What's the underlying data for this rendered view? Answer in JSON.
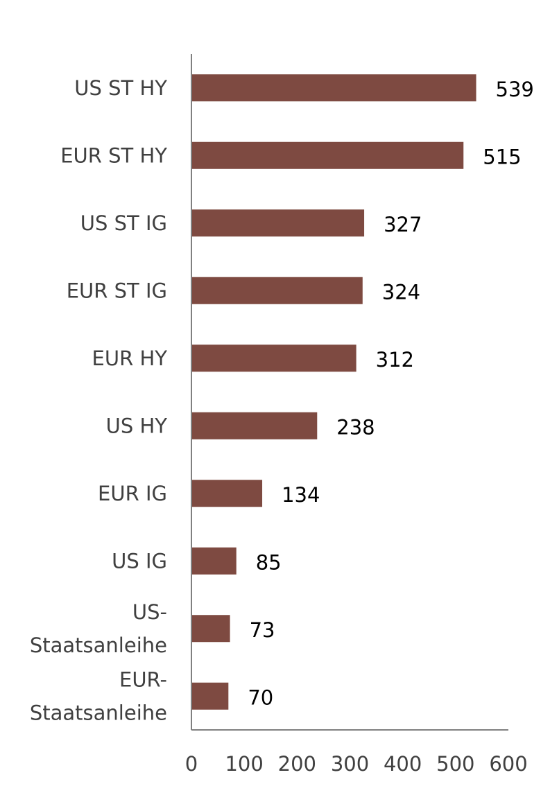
{
  "chart_data": {
    "type": "bar",
    "orientation": "horizontal",
    "title": "",
    "xlabel": "",
    "ylabel": "",
    "xlim": [
      0,
      600
    ],
    "xticks": [
      0,
      100,
      200,
      300,
      400,
      500,
      600
    ],
    "grid": false,
    "categories": [
      [
        "US ST HY"
      ],
      [
        "EUR ST HY"
      ],
      [
        "US ST IG"
      ],
      [
        "EUR ST IG"
      ],
      [
        "EUR HY"
      ],
      [
        "US HY"
      ],
      [
        "EUR IG"
      ],
      [
        "US IG"
      ],
      [
        "US-",
        "Staatsanleihe"
      ],
      [
        "EUR-",
        "Staatsanleihe"
      ]
    ],
    "values": [
      539,
      515,
      327,
      324,
      312,
      238,
      134,
      85,
      73,
      70
    ],
    "bar_color": "#7e4a41",
    "axis_color": "#808080"
  }
}
